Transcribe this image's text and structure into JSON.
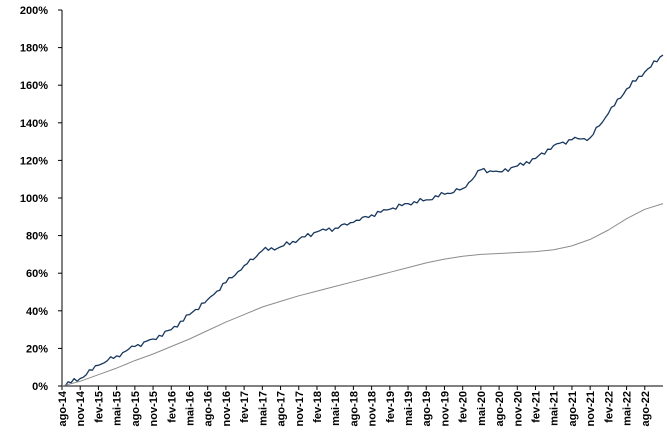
{
  "colors": {
    "series_1": "#17375e",
    "series_2": "#8c8c8c",
    "axis": "#000000",
    "background": "#ffffff"
  },
  "chart_data": {
    "type": "line",
    "title": "",
    "xlabel": "",
    "ylabel": "",
    "grid": false,
    "legend": "none",
    "y_unit": "%",
    "ylim": [
      0,
      200
    ],
    "y_ticks": [
      0,
      20,
      40,
      60,
      80,
      100,
      120,
      140,
      160,
      180,
      200
    ],
    "y_tick_labels": [
      "0%",
      "20%",
      "40%",
      "60%",
      "80%",
      "100%",
      "120%",
      "140%",
      "160%",
      "180%",
      "200%"
    ],
    "x_range": [
      "2014-08",
      "2022-11"
    ],
    "x_ticks": [
      "2014-08",
      "2014-11",
      "2015-02",
      "2015-05",
      "2015-08",
      "2015-11",
      "2016-02",
      "2016-05",
      "2016-08",
      "2016-11",
      "2017-02",
      "2017-05",
      "2017-08",
      "2017-11",
      "2018-02",
      "2018-05",
      "2018-08",
      "2018-11",
      "2019-02",
      "2019-05",
      "2019-08",
      "2019-11",
      "2020-02",
      "2020-05",
      "2020-08",
      "2020-11",
      "2021-02",
      "2021-05",
      "2021-08",
      "2021-11",
      "2022-02",
      "2022-05",
      "2022-08"
    ],
    "x_tick_labels": [
      "ago-14",
      "nov-14",
      "fev-15",
      "mai-15",
      "ago-15",
      "nov-15",
      "fev-16",
      "mai-16",
      "ago-16",
      "nov-16",
      "fev-17",
      "mai-17",
      "ago-17",
      "nov-17",
      "fev-18",
      "mai-18",
      "ago-18",
      "nov-18",
      "fev-19",
      "mai-19",
      "ago-19",
      "nov-19",
      "fev-20",
      "mai-20",
      "ago-20",
      "nov-20",
      "fev-21",
      "mai-21",
      "ago-21",
      "nov-21",
      "fev-22",
      "mai-22",
      "ago-22"
    ],
    "series": [
      {
        "color": "#17375e",
        "x": [
          "2014-08",
          "2014-11",
          "2015-02",
          "2015-05",
          "2015-08",
          "2015-11",
          "2016-02",
          "2016-05",
          "2016-08",
          "2016-11",
          "2017-02",
          "2017-05",
          "2017-08",
          "2017-11",
          "2018-02",
          "2018-05",
          "2018-08",
          "2018-11",
          "2019-02",
          "2019-05",
          "2019-08",
          "2019-11",
          "2020-02",
          "2020-05",
          "2020-08",
          "2020-11",
          "2021-02",
          "2021-05",
          "2021-08",
          "2021-11",
          "2022-02",
          "2022-05",
          "2022-08",
          "2022-11"
        ],
        "values": [
          0,
          4,
          11,
          16,
          21,
          25,
          30,
          38,
          46,
          55,
          64,
          72,
          74,
          78,
          82,
          84,
          87,
          91,
          94,
          97,
          99,
          102,
          105,
          115,
          114,
          117,
          121,
          128,
          131,
          132,
          145,
          158,
          167,
          176
        ]
      },
      {
        "color": "#8c8c8c",
        "x": [
          "2014-08",
          "2014-11",
          "2015-02",
          "2015-05",
          "2015-08",
          "2015-11",
          "2016-02",
          "2016-05",
          "2016-08",
          "2016-11",
          "2017-02",
          "2017-05",
          "2017-08",
          "2017-11",
          "2018-02",
          "2018-05",
          "2018-08",
          "2018-11",
          "2019-02",
          "2019-05",
          "2019-08",
          "2019-11",
          "2020-02",
          "2020-05",
          "2020-08",
          "2020-11",
          "2021-02",
          "2021-05",
          "2021-08",
          "2021-11",
          "2022-02",
          "2022-05",
          "2022-08",
          "2022-11"
        ],
        "values": [
          0,
          2.5,
          6,
          9.5,
          13.5,
          17,
          21,
          25,
          29.5,
          34,
          38,
          42,
          45,
          48,
          50.5,
          53,
          55.5,
          58,
          60.5,
          63,
          65.5,
          67.5,
          69,
          70,
          70.5,
          71,
          71.5,
          72.5,
          74.5,
          78,
          83,
          89,
          94,
          97
        ]
      }
    ]
  }
}
